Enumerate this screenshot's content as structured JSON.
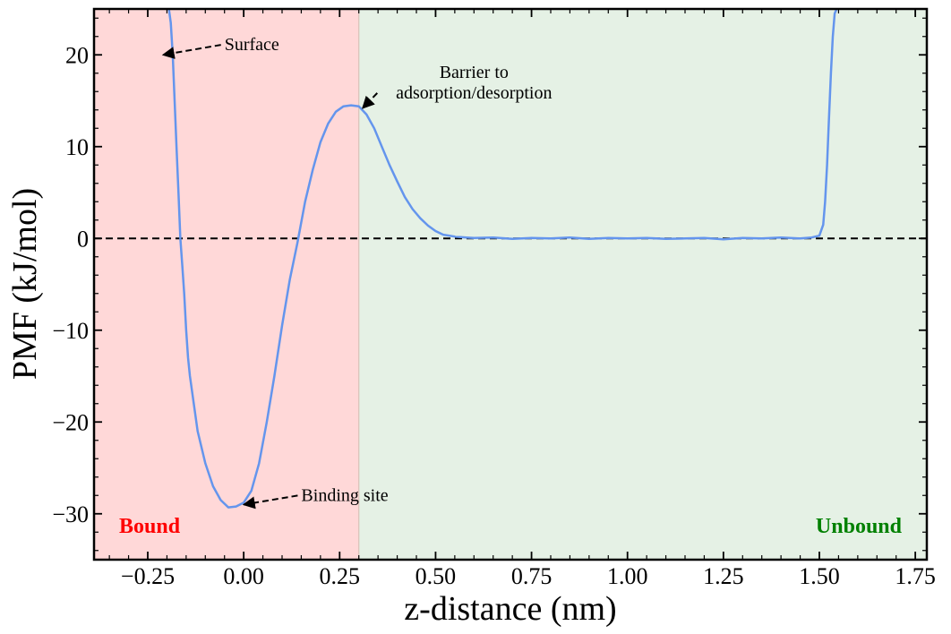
{
  "chart_data": {
    "type": "line",
    "title": "",
    "xlabel": "z-distance (nm)",
    "ylabel": "PMF (kJ/mol)",
    "xlim": [
      -0.39,
      1.78
    ],
    "ylim": [
      -35,
      25
    ],
    "x_ticks": [
      -0.25,
      0.0,
      0.25,
      0.5,
      0.75,
      1.0,
      1.25,
      1.5,
      1.75
    ],
    "x_tick_labels": [
      "−0.25",
      "0.00",
      "0.25",
      "0.50",
      "0.75",
      "1.00",
      "1.25",
      "1.50",
      "1.75"
    ],
    "y_ticks": [
      -30,
      -20,
      -10,
      0,
      10,
      20
    ],
    "y_tick_labels": [
      "−30",
      "−20",
      "−10",
      "0",
      "10",
      "20"
    ],
    "grid": false,
    "reference_line": {
      "y": 0,
      "style": "dashed",
      "color": "#000000"
    },
    "regions": [
      {
        "label": "Bound",
        "x_start": -0.39,
        "x_end": 0.3,
        "fill": "#ffd8d8",
        "label_color": "#ff0000",
        "label_position": "bottom-left"
      },
      {
        "label": "Unbound",
        "x_start": 0.3,
        "x_end": 1.78,
        "fill": "#e5f1e5",
        "label_color": "#008000",
        "label_position": "bottom-right"
      }
    ],
    "series": [
      {
        "color": "#6495ed",
        "x": [
          -0.165,
          -0.17,
          -0.175,
          -0.18,
          -0.185,
          -0.19,
          -0.195,
          -0.165,
          -0.16,
          -0.155,
          -0.15,
          -0.145,
          -0.14,
          -0.13,
          -0.12,
          -0.1,
          -0.08,
          -0.06,
          -0.04,
          -0.02,
          0.0,
          0.02,
          0.04,
          0.06,
          0.08,
          0.1,
          0.12,
          0.14,
          0.16,
          0.18,
          0.2,
          0.22,
          0.24,
          0.26,
          0.28,
          0.3,
          0.32,
          0.34,
          0.36,
          0.38,
          0.4,
          0.42,
          0.44,
          0.46,
          0.48,
          0.5,
          0.52,
          0.55,
          0.58,
          0.6,
          0.65,
          0.7,
          0.75,
          0.8,
          0.85,
          0.9,
          0.95,
          1.0,
          1.05,
          1.1,
          1.15,
          1.2,
          1.25,
          1.3,
          1.35,
          1.4,
          1.45,
          1.48,
          1.5,
          1.51,
          1.515,
          1.52,
          1.525,
          1.53,
          1.535,
          1.54,
          1.545
        ],
        "y": [
          0.0,
          5.0,
          10.0,
          15.0,
          20.0,
          23.5,
          25.0,
          0.0,
          -3.0,
          -6.0,
          -10.0,
          -13.0,
          -15.0,
          -18.0,
          -21.0,
          -24.5,
          -27.0,
          -28.5,
          -29.3,
          -29.2,
          -28.8,
          -27.5,
          -24.5,
          -20.0,
          -15.0,
          -9.5,
          -4.5,
          -0.5,
          4.0,
          7.5,
          10.5,
          12.5,
          13.8,
          14.4,
          14.5,
          14.4,
          13.5,
          12.0,
          10.0,
          8.0,
          6.2,
          4.5,
          3.2,
          2.2,
          1.4,
          0.8,
          0.4,
          0.2,
          0.1,
          0.05,
          0.1,
          -0.05,
          0.05,
          0.0,
          0.1,
          -0.05,
          0.05,
          0.0,
          0.05,
          -0.05,
          0.0,
          0.05,
          -0.1,
          0.05,
          0.0,
          0.1,
          0.0,
          0.1,
          0.3,
          1.5,
          4.0,
          8.0,
          13.0,
          18.0,
          22.0,
          24.5,
          25.0
        ]
      }
    ],
    "annotations": [
      {
        "lines": [
          "Surface"
        ],
        "text_x": -0.05,
        "text_y": 20.5,
        "arrow_to": [
          -0.21,
          20.0
        ]
      },
      {
        "lines": [
          "Barrier to",
          "adsorption/desorption"
        ],
        "text_x": 0.6,
        "text_y": 17.5,
        "arrow_to": [
          0.31,
          14.2
        ]
      },
      {
        "lines": [
          "Binding site"
        ],
        "text_x": 0.15,
        "text_y": -28.6,
        "arrow_to": [
          0.0,
          -29.0
        ]
      }
    ]
  }
}
